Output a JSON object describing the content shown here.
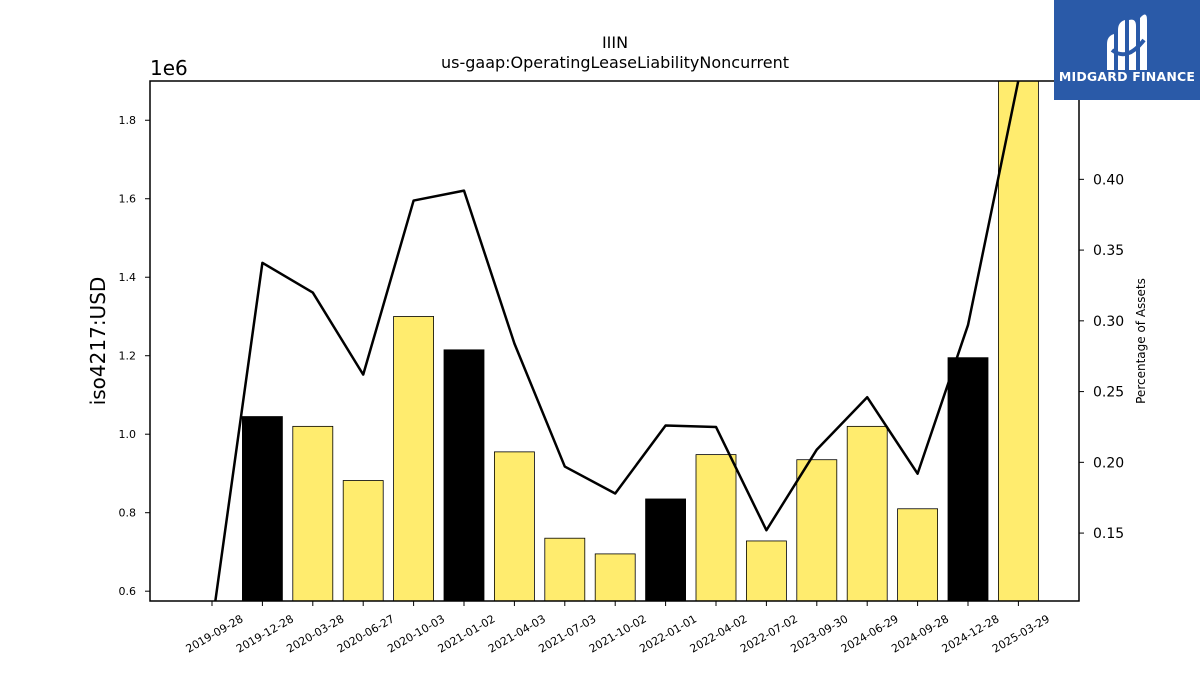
{
  "chart_data": {
    "type": "bar",
    "title": "IIIN",
    "subtitle": "us-gaap:OperatingLeaseLiabilityNoncurrent",
    "ylabel": "iso4217:USD",
    "y_multiplier_label": "1e6",
    "y2label": "Percentage of Assets",
    "categories": [
      "2019-09-28",
      "2019-12-28",
      "2020-03-28",
      "2020-06-27",
      "2020-10-03",
      "2021-01-02",
      "2021-04-03",
      "2021-07-03",
      "2021-10-02",
      "2022-01-01",
      "2022-04-02",
      "2022-07-02",
      "2023-09-30",
      "2024-06-29",
      "2024-09-28",
      "2024-12-28",
      "2025-03-29"
    ],
    "y_ticks": [
      0.6,
      0.8,
      1.0,
      1.2,
      1.4,
      1.6,
      1.8
    ],
    "y_tick_labels": [
      "0.6",
      "0.8",
      "1.0",
      "1.2",
      "1.4",
      "1.6",
      "1.8"
    ],
    "y2_ticks": [
      0.15,
      0.2,
      0.25,
      0.3,
      0.35,
      0.4
    ],
    "y2_tick_labels": [
      "0.15",
      "0.20",
      "0.25",
      "0.30",
      "0.35",
      "0.40"
    ],
    "ylim": [
      0.575,
      1.9
    ],
    "y2lim": [
      0.102,
      0.4695
    ],
    "grid": false,
    "series": [
      {
        "type": "bar",
        "values": [
          null,
          1.045,
          1.02,
          0.882,
          1.3,
          1.215,
          0.955,
          0.735,
          0.695,
          0.835,
          0.948,
          0.728,
          0.935,
          1.02,
          0.81,
          1.195,
          1.9
        ],
        "highlight": [
          false,
          true,
          false,
          false,
          false,
          true,
          false,
          false,
          false,
          true,
          false,
          false,
          false,
          false,
          false,
          true,
          false
        ]
      },
      {
        "type": "line",
        "axis": "right",
        "values": [
          0.085,
          0.341,
          0.32,
          0.262,
          0.385,
          0.392,
          0.284,
          0.197,
          0.178,
          0.226,
          0.225,
          0.152,
          0.209,
          0.246,
          0.192,
          0.297,
          0.47
        ]
      }
    ],
    "colors": {
      "bar": "#ffec6e",
      "bar_highlight": "#000000",
      "edge": "#000000",
      "line": "#000000"
    }
  },
  "logo": {
    "text": "MIDGARD FINANCE",
    "bg": "#2a5aa8"
  }
}
